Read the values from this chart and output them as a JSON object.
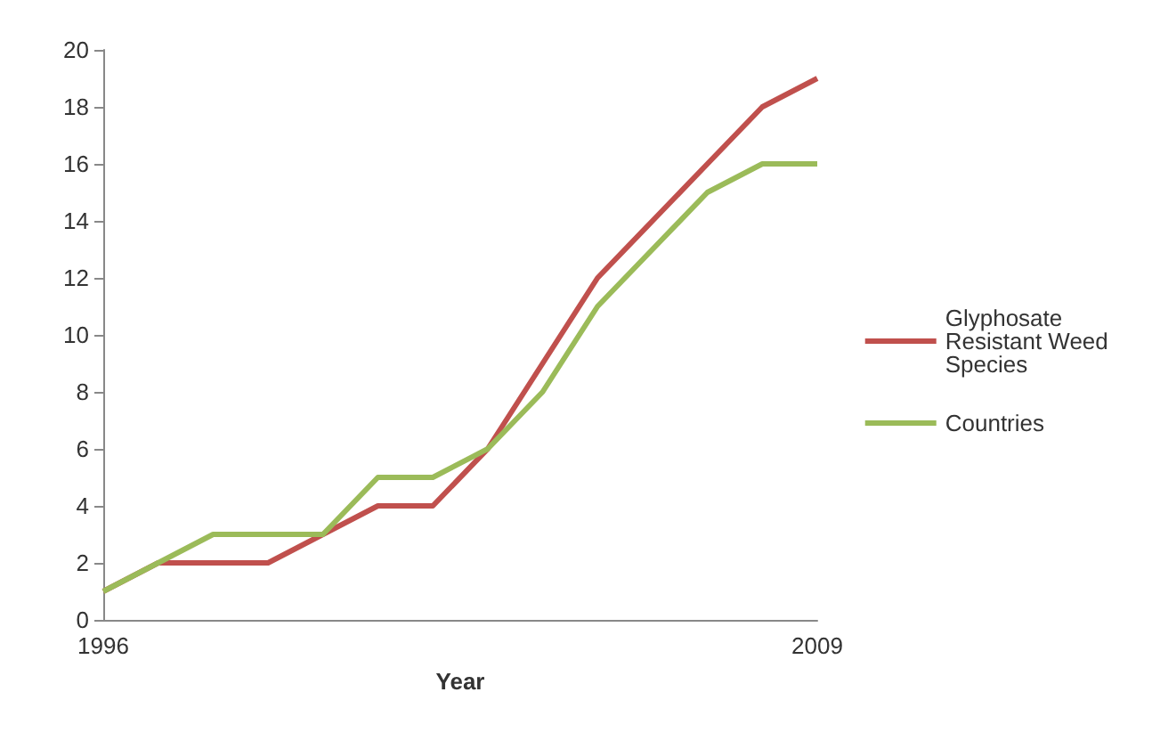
{
  "chart_data": {
    "type": "line",
    "xlabel": "Year",
    "categories": [
      "1996",
      null,
      null,
      null,
      null,
      null,
      null,
      null,
      null,
      null,
      null,
      null,
      null,
      "2009"
    ],
    "series": [
      {
        "name": "Glyphosate Resistant Weed Species",
        "color": "#c0504d",
        "values": [
          1,
          2,
          2,
          2,
          3,
          4,
          4,
          6,
          9,
          12,
          14,
          16,
          18,
          19
        ]
      },
      {
        "name": "Countries",
        "color": "#9bbb59",
        "values": [
          1,
          2,
          3,
          3,
          3,
          5,
          5,
          6,
          8,
          11,
          13,
          15,
          16,
          16
        ]
      }
    ],
    "ylim": [
      0,
      20
    ],
    "yticks": [
      0,
      2,
      4,
      6,
      8,
      10,
      12,
      14,
      16,
      18,
      20
    ],
    "grid": false,
    "legend": "right",
    "marker": "none",
    "line_style": "solid"
  }
}
